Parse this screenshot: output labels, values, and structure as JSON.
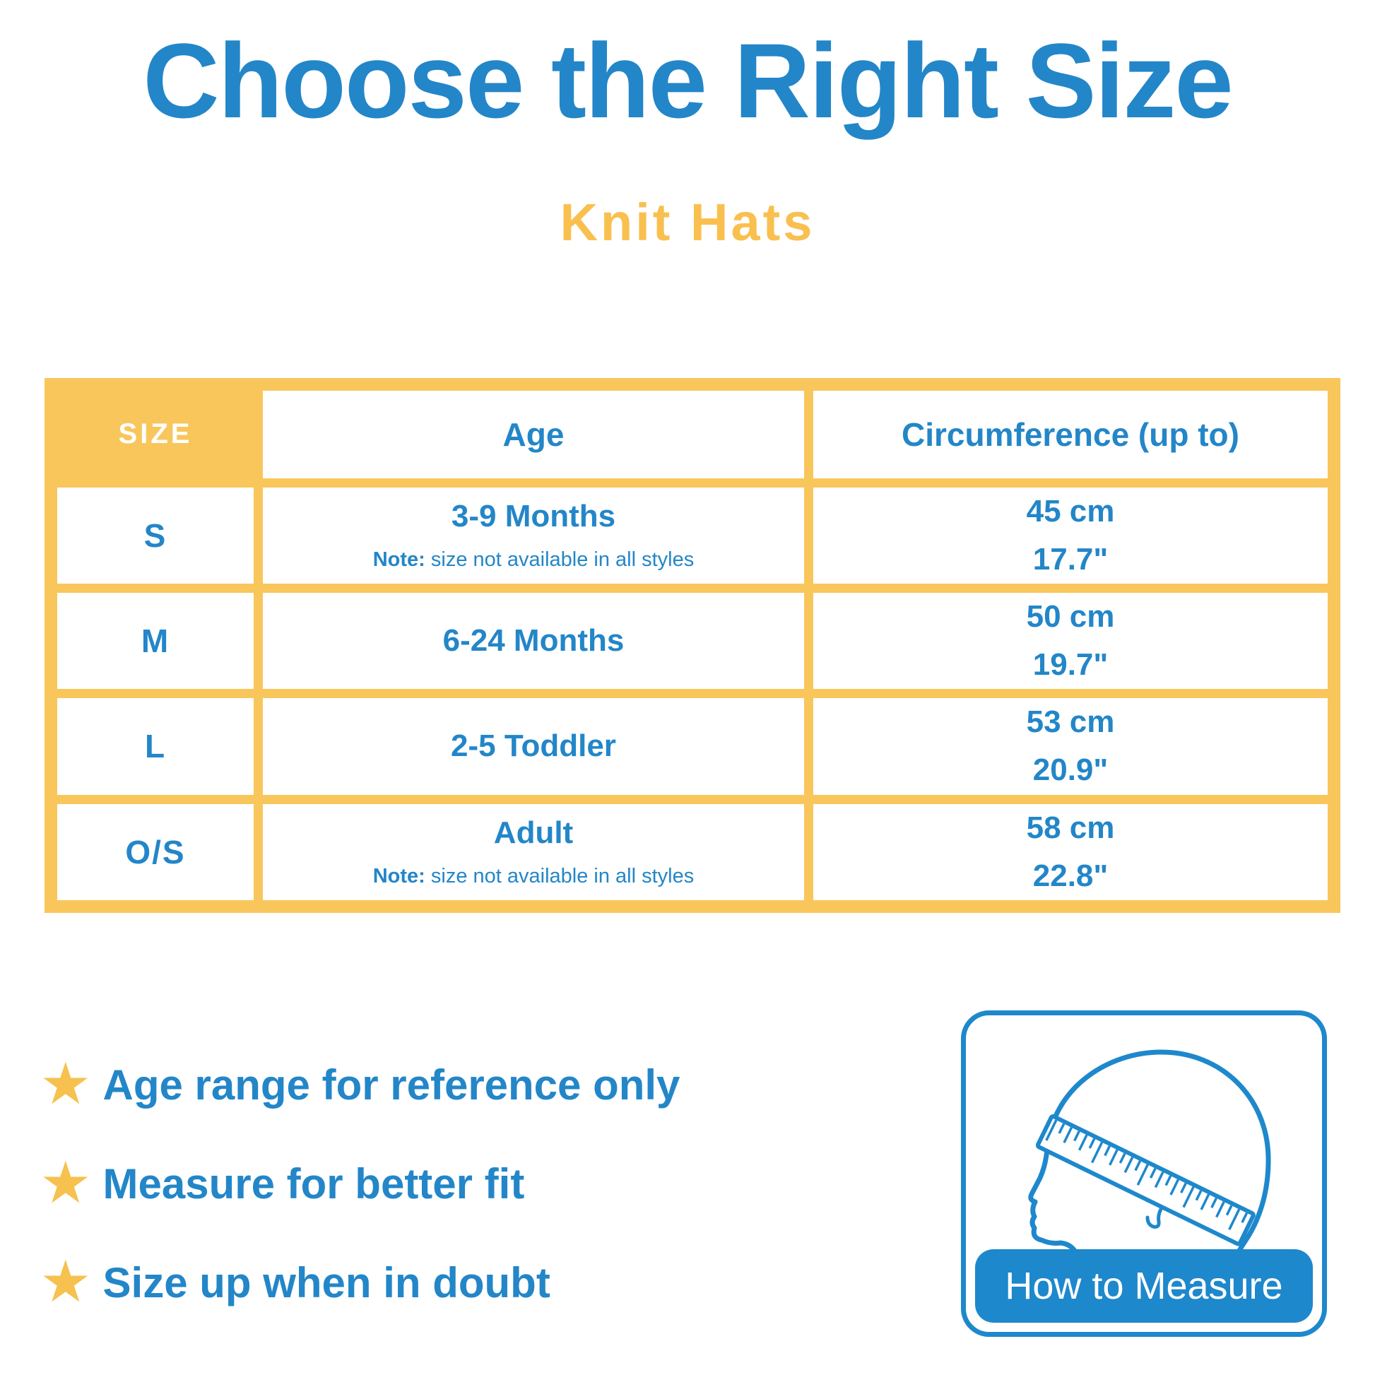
{
  "title": "Choose the Right Size",
  "subtitle": "Knit Hats",
  "table": {
    "headers": {
      "size": "SIZE",
      "age": "Age",
      "circumference": "Circumference (up to)"
    },
    "rows": [
      {
        "size": "S",
        "age": "3-9 Months",
        "note_label": "Note:",
        "note_text": " size not available in all styles",
        "cm": "45 cm",
        "inches": "17.7\""
      },
      {
        "size": "M",
        "age": "6-24 Months",
        "note_label": "",
        "note_text": "",
        "cm": "50 cm",
        "inches": "19.7\""
      },
      {
        "size": "L",
        "age": "2-5 Toddler",
        "note_label": "",
        "note_text": "",
        "cm": "53 cm",
        "inches": "20.9\""
      },
      {
        "size": "O/S",
        "age": "Adult",
        "note_label": "Note:",
        "note_text": " size not available in all styles",
        "cm": "58 cm",
        "inches": "22.8\""
      }
    ]
  },
  "bullets": [
    {
      "icon": "★",
      "text": "Age range for reference only"
    },
    {
      "icon": "★",
      "text": "Measure for better fit"
    },
    {
      "icon": "★",
      "text": "Size up when in doubt"
    }
  ],
  "measure_box": {
    "label": "How to Measure"
  },
  "colors": {
    "blue": "#2386C8",
    "table_yellow": "#F9C65C",
    "star_yellow": "#F6C14E",
    "box_blue": "#1E88CC"
  }
}
